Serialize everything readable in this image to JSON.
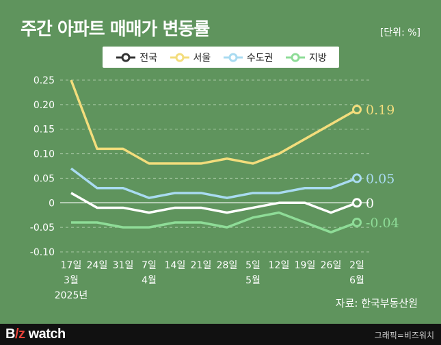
{
  "header": {
    "title": "주간 아파트 매매가 변동률",
    "unit": "[단위: %]"
  },
  "source": "자료: 한국부동산원",
  "footer": {
    "brand_prefix": "B",
    "brand_z": "/z",
    "brand_word": " watch",
    "credit": "그래픽=비즈워치"
  },
  "colors": {
    "background": "#5f945d",
    "national": "#ffffff",
    "seoul": "#f3dd7c",
    "capital": "#a9dbf1",
    "local": "#8edc97"
  },
  "chart_data": {
    "type": "line",
    "x": [
      "17일",
      "24일",
      "31일",
      "7일",
      "14일",
      "21일",
      "28일",
      "5일",
      "12일",
      "19일",
      "26일",
      "2일"
    ],
    "x_sublabels": [
      [
        "3월",
        "2025년"
      ],
      [],
      [],
      [
        "4월"
      ],
      [],
      [],
      [],
      [
        "5월"
      ],
      [],
      [],
      [],
      [
        "6월"
      ]
    ],
    "ylim": [
      -0.1,
      0.25
    ],
    "yticks": [
      "0.25",
      "0.20",
      "0.15",
      "0.10",
      "0.05",
      "0",
      "-0.05",
      "-0.10"
    ],
    "grid": true,
    "legend_position": "top",
    "series": [
      {
        "name": "전국",
        "color": "#ffffff",
        "values": [
          0.02,
          -0.01,
          -0.01,
          -0.02,
          -0.01,
          -0.01,
          -0.02,
          -0.01,
          0.0,
          0.0,
          -0.02,
          0.0
        ],
        "end_label": "0"
      },
      {
        "name": "서울",
        "color": "#f3dd7c",
        "values": [
          0.25,
          0.11,
          0.11,
          0.08,
          0.08,
          0.08,
          0.09,
          0.08,
          0.1,
          0.13,
          0.16,
          0.19
        ],
        "end_label": "0.19"
      },
      {
        "name": "수도권",
        "color": "#a9dbf1",
        "values": [
          0.07,
          0.03,
          0.03,
          0.01,
          0.02,
          0.02,
          0.01,
          0.02,
          0.02,
          0.03,
          0.03,
          0.05
        ],
        "end_label": "0.05"
      },
      {
        "name": "지방",
        "color": "#8edc97",
        "values": [
          -0.04,
          -0.04,
          -0.05,
          -0.05,
          -0.04,
          -0.04,
          -0.05,
          -0.03,
          -0.02,
          -0.04,
          -0.06,
          -0.04
        ],
        "end_label": "-0.04"
      }
    ]
  }
}
